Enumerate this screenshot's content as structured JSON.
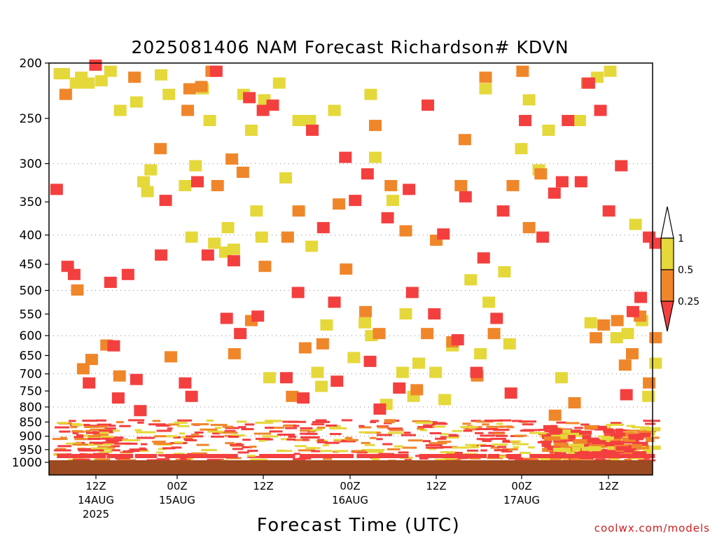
{
  "chart_data": {
    "type": "heatmap",
    "title": "2025081406 NAM Forecast Richardson# KDVN",
    "xlabel": "Forecast Time (UTC)",
    "ylabel": "",
    "ylim": [
      1000,
      200
    ],
    "y_ticks": [
      200,
      250,
      300,
      350,
      400,
      450,
      500,
      550,
      600,
      650,
      700,
      750,
      800,
      850,
      900,
      950,
      1000
    ],
    "y_gridlines": [
      300,
      400,
      500,
      600,
      700,
      800,
      900,
      1000
    ],
    "x_ticks": [
      {
        "label": "12Z",
        "sub1": "14AUG",
        "sub2": "2025"
      },
      {
        "label": "00Z",
        "sub1": "15AUG",
        "sub2": ""
      },
      {
        "label": "12Z",
        "sub1": "",
        "sub2": ""
      },
      {
        "label": "00Z",
        "sub1": "16AUG",
        "sub2": ""
      },
      {
        "label": "12Z",
        "sub1": "",
        "sub2": ""
      },
      {
        "label": "00Z",
        "sub1": "17AUG",
        "sub2": ""
      },
      {
        "label": "12Z",
        "sub1": "",
        "sub2": ""
      }
    ],
    "legend": {
      "position": "right",
      "levels": [
        "1",
        "0.5",
        "0.25"
      ],
      "bins": [
        {
          "range": "> 1",
          "color": "#ffffff"
        },
        {
          "range": "0.5 - 1",
          "color": "#e5d83a"
        },
        {
          "range": "0.25 - 0.5",
          "color": "#f0862a"
        },
        {
          "range": "< 0.25",
          "color": "#f43f3f"
        }
      ]
    },
    "ground_color": "#9b4a22",
    "series": [
      {
        "name": "yellow",
        "color": "#e5d83a",
        "cells": [
          [
            7,
            207
          ],
          [
            13,
            207
          ],
          [
            32,
            215
          ],
          [
            40,
            210
          ],
          [
            51,
            215
          ],
          [
            71,
            213
          ],
          [
            85,
            205
          ],
          [
            100,
            240
          ],
          [
            125,
            232
          ],
          [
            136,
            320
          ],
          [
            142,
            333
          ],
          [
            147,
            305
          ],
          [
            163,
            208
          ],
          [
            175,
            225
          ],
          [
            200,
            325
          ],
          [
            210,
            400
          ],
          [
            216,
            300
          ],
          [
            227,
            220
          ],
          [
            238,
            250
          ],
          [
            245,
            410
          ],
          [
            262,
            425
          ],
          [
            266,
            385
          ],
          [
            275,
            420
          ],
          [
            290,
            225
          ],
          [
            302,
            260
          ],
          [
            310,
            360
          ],
          [
            318,
            400
          ],
          [
            322,
            230
          ],
          [
            330,
            705
          ],
          [
            345,
            215
          ],
          [
            355,
            315
          ],
          [
            375,
            250
          ],
          [
            392,
            250
          ],
          [
            395,
            415
          ],
          [
            404,
            690
          ],
          [
            410,
            730
          ],
          [
            418,
            570
          ],
          [
            430,
            240
          ],
          [
            460,
            650
          ],
          [
            477,
            565
          ],
          [
            486,
            225
          ],
          [
            487,
            595
          ],
          [
            493,
            290
          ],
          [
            510,
            785
          ],
          [
            520,
            345
          ],
          [
            535,
            690
          ],
          [
            540,
            545
          ],
          [
            552,
            760
          ],
          [
            560,
            665
          ],
          [
            586,
            690
          ],
          [
            600,
            770
          ],
          [
            612,
            620
          ],
          [
            640,
            475
          ],
          [
            655,
            640
          ],
          [
            663,
            220
          ],
          [
            668,
            520
          ],
          [
            692,
            460
          ],
          [
            700,
            615
          ],
          [
            718,
            280
          ],
          [
            730,
            230
          ],
          [
            745,
            305
          ],
          [
            760,
            260
          ],
          [
            780,
            705
          ],
          [
            808,
            250
          ],
          [
            825,
            565
          ],
          [
            835,
            210
          ],
          [
            855,
            205
          ],
          [
            865,
            600
          ],
          [
            882,
            590
          ],
          [
            894,
            380
          ],
          [
            904,
            560
          ],
          [
            914,
            760
          ],
          [
            925,
            665
          ]
        ]
      },
      {
        "name": "orange",
        "color": "#f0862a",
        "cells": [
          [
            16,
            225
          ],
          [
            34,
            495
          ],
          [
            43,
            680
          ],
          [
            56,
            655
          ],
          [
            79,
            618
          ],
          [
            99,
            700
          ],
          [
            122,
            210
          ],
          [
            162,
            280
          ],
          [
            178,
            648
          ],
          [
            204,
            240
          ],
          [
            207,
            220
          ],
          [
            225,
            218
          ],
          [
            241,
            205
          ],
          [
            250,
            325
          ],
          [
            272,
            292
          ],
          [
            276,
            640
          ],
          [
            289,
            308
          ],
          [
            302,
            560
          ],
          [
            323,
            450
          ],
          [
            358,
            400
          ],
          [
            365,
            760
          ],
          [
            375,
            360
          ],
          [
            385,
            625
          ],
          [
            412,
            615
          ],
          [
            437,
            350
          ],
          [
            448,
            455
          ],
          [
            478,
            540
          ],
          [
            493,
            255
          ],
          [
            499,
            590
          ],
          [
            517,
            325
          ],
          [
            540,
            390
          ],
          [
            557,
            740
          ],
          [
            573,
            590
          ],
          [
            587,
            405
          ],
          [
            612,
            610
          ],
          [
            625,
            325
          ],
          [
            631,
            270
          ],
          [
            650,
            700
          ],
          [
            663,
            210
          ],
          [
            676,
            590
          ],
          [
            705,
            325
          ],
          [
            720,
            205
          ],
          [
            730,
            385
          ],
          [
            748,
            310
          ],
          [
            770,
            820
          ],
          [
            800,
            780
          ],
          [
            820,
            215
          ],
          [
            833,
            600
          ],
          [
            845,
            570
          ],
          [
            866,
            560
          ],
          [
            878,
            670
          ],
          [
            889,
            640
          ],
          [
            901,
            550
          ],
          [
            915,
            720
          ],
          [
            925,
            600
          ]
        ]
      },
      {
        "name": "red",
        "color": "#f43f3f",
        "cells": [
          [
            2,
            330
          ],
          [
            19,
            450
          ],
          [
            29,
            465
          ],
          [
            52,
            720
          ],
          [
            62,
            200
          ],
          [
            85,
            480
          ],
          [
            90,
            620
          ],
          [
            97,
            765
          ],
          [
            112,
            465
          ],
          [
            125,
            710
          ],
          [
            131,
            805
          ],
          [
            163,
            430
          ],
          [
            170,
            345
          ],
          [
            200,
            720
          ],
          [
            210,
            760
          ],
          [
            219,
            320
          ],
          [
            235,
            430
          ],
          [
            248,
            205
          ],
          [
            264,
            555
          ],
          [
            275,
            440
          ],
          [
            285,
            590
          ],
          [
            299,
            228
          ],
          [
            312,
            550
          ],
          [
            320,
            240
          ],
          [
            335,
            235
          ],
          [
            356,
            705
          ],
          [
            374,
            500
          ],
          [
            382,
            765
          ],
          [
            396,
            260
          ],
          [
            413,
            385
          ],
          [
            430,
            520
          ],
          [
            434,
            715
          ],
          [
            447,
            290
          ],
          [
            462,
            345
          ],
          [
            481,
            310
          ],
          [
            485,
            660
          ],
          [
            500,
            800
          ],
          [
            512,
            370
          ],
          [
            530,
            735
          ],
          [
            545,
            330
          ],
          [
            550,
            500
          ],
          [
            574,
            235
          ],
          [
            584,
            545
          ],
          [
            598,
            395
          ],
          [
            620,
            605
          ],
          [
            632,
            340
          ],
          [
            649,
            690
          ],
          [
            660,
            435
          ],
          [
            680,
            555
          ],
          [
            690,
            360
          ],
          [
            702,
            750
          ],
          [
            724,
            250
          ],
          [
            751,
            400
          ],
          [
            769,
            335
          ],
          [
            781,
            320
          ],
          [
            790,
            250
          ],
          [
            810,
            320
          ],
          [
            822,
            215
          ],
          [
            840,
            240
          ],
          [
            853,
            360
          ],
          [
            872,
            300
          ],
          [
            880,
            755
          ],
          [
            890,
            540
          ],
          [
            902,
            510
          ],
          [
            915,
            400
          ],
          [
            925,
            410
          ]
        ]
      },
      {
        "name": "dense-low",
        "color": "#f43f3f",
        "cells": []
      }
    ]
  }
}
